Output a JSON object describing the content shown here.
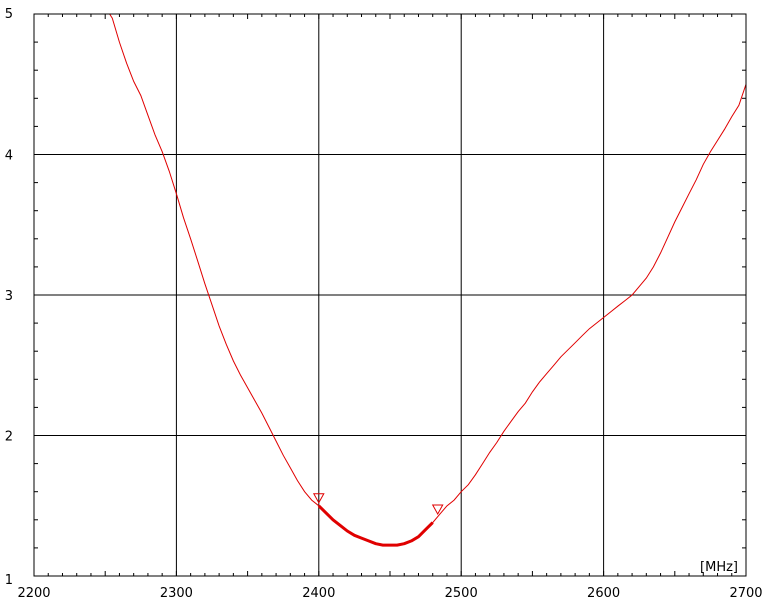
{
  "chart_data": {
    "type": "line",
    "title": "",
    "xlabel": "",
    "ylabel": "",
    "x_unit_label": "[MHz]",
    "xlim": [
      2200,
      2700
    ],
    "ylim": [
      1,
      5
    ],
    "x_ticks": [
      2200,
      2300,
      2400,
      2500,
      2600,
      2700
    ],
    "y_ticks": [
      1,
      2,
      3,
      4,
      5
    ],
    "grid": true,
    "colors": {
      "trace": "#e00000",
      "grid": "#000000",
      "background": "#ffffff"
    },
    "series": [
      {
        "x": [
          2250,
          2255,
          2260,
          2265,
          2270,
          2275,
          2280,
          2285,
          2290,
          2295,
          2300,
          2305,
          2310,
          2315,
          2320,
          2325,
          2330,
          2335,
          2340,
          2345,
          2350,
          2355,
          2360,
          2365,
          2370,
          2375,
          2380,
          2385,
          2390,
          2395,
          2400,
          2405,
          2410,
          2415,
          2420,
          2425,
          2430,
          2435,
          2440,
          2445,
          2450,
          2455,
          2460,
          2465,
          2470,
          2475,
          2480,
          2485,
          2490,
          2495,
          2500,
          2505,
          2510,
          2515,
          2520,
          2525,
          2530,
          2535,
          2540,
          2545,
          2550,
          2555,
          2560,
          2565,
          2570,
          2575,
          2580,
          2585,
          2590,
          2595,
          2600,
          2605,
          2610,
          2615,
          2620,
          2625,
          2630,
          2635,
          2640,
          2645,
          2650,
          2655,
          2660,
          2665,
          2670,
          2675,
          2680,
          2685,
          2690,
          2695,
          2700
        ],
        "values": [
          5.05,
          4.97,
          4.8,
          4.65,
          4.52,
          4.42,
          4.28,
          4.14,
          4.02,
          3.88,
          3.72,
          3.55,
          3.4,
          3.24,
          3.08,
          2.93,
          2.78,
          2.65,
          2.53,
          2.43,
          2.34,
          2.25,
          2.16,
          2.06,
          1.96,
          1.86,
          1.77,
          1.68,
          1.6,
          1.54,
          1.5,
          1.45,
          1.4,
          1.36,
          1.32,
          1.29,
          1.27,
          1.25,
          1.23,
          1.22,
          1.22,
          1.22,
          1.23,
          1.25,
          1.28,
          1.33,
          1.38,
          1.44,
          1.5,
          1.54,
          1.6,
          1.65,
          1.72,
          1.8,
          1.88,
          1.95,
          2.03,
          2.1,
          2.17,
          2.23,
          2.31,
          2.38,
          2.44,
          2.5,
          2.56,
          2.61,
          2.66,
          2.71,
          2.76,
          2.8,
          2.84,
          2.88,
          2.92,
          2.96,
          3.0,
          3.06,
          3.12,
          3.2,
          3.3,
          3.41,
          3.52,
          3.62,
          3.72,
          3.82,
          3.93,
          4.02,
          4.1,
          4.18,
          4.27,
          4.35,
          4.5
        ]
      }
    ],
    "highlight_range": [
      2400,
      2483.5
    ],
    "markers": [
      {
        "x": 2400,
        "y": 1.5
      },
      {
        "x": 2483.5,
        "y": 1.42
      }
    ]
  }
}
